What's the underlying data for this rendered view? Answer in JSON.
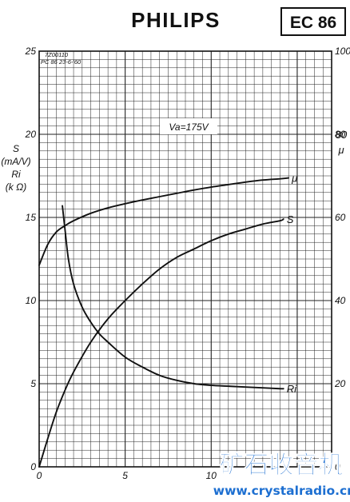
{
  "header": {
    "brand": "PHILIPS",
    "tube_type": "EC 86"
  },
  "sheet": {
    "code": "7Z00110",
    "ref": "PC 86   23-6-'60"
  },
  "chart_data": {
    "type": "line",
    "title": "",
    "annotation": "Va=175V",
    "x": {
      "label": "",
      "range": [
        0,
        17
      ],
      "ticks": [
        0,
        5,
        10
      ]
    },
    "y_left": {
      "label_lines": [
        "S",
        "(mA/V)",
        "Ri",
        "(k Ω)"
      ],
      "range": [
        0,
        25
      ],
      "ticks": [
        0,
        5,
        10,
        15,
        20,
        25
      ]
    },
    "y_right": {
      "label_lines": [
        "80",
        "μ"
      ],
      "range": [
        0,
        100
      ],
      "ticks": [
        0,
        20,
        40,
        60,
        80,
        100
      ]
    },
    "grid": true,
    "series": [
      {
        "name": "μ",
        "axis": "right",
        "points": [
          [
            0,
            48.5
          ],
          [
            0.5,
            53.5
          ],
          [
            1,
            56.5
          ],
          [
            1.5,
            58
          ],
          [
            2,
            59.2
          ],
          [
            3,
            61
          ],
          [
            4,
            62.3
          ],
          [
            5,
            63.3
          ],
          [
            6,
            64.2
          ],
          [
            7,
            65
          ],
          [
            8,
            65.8
          ],
          [
            9,
            66.6
          ],
          [
            10,
            67.3
          ],
          [
            11,
            67.9
          ],
          [
            12,
            68.5
          ],
          [
            13,
            69
          ],
          [
            14,
            69.3
          ],
          [
            14.5,
            69.5
          ]
        ]
      },
      {
        "name": "S",
        "axis": "left",
        "points": [
          [
            0,
            0
          ],
          [
            0.5,
            1.7
          ],
          [
            1,
            3.3
          ],
          [
            1.5,
            4.6
          ],
          [
            2,
            5.7
          ],
          [
            3,
            7.5
          ],
          [
            4,
            8.9
          ],
          [
            5,
            10
          ],
          [
            6,
            11
          ],
          [
            7,
            11.9
          ],
          [
            8,
            12.6
          ],
          [
            9,
            13.1
          ],
          [
            10,
            13.6
          ],
          [
            11,
            14
          ],
          [
            12,
            14.3
          ],
          [
            13,
            14.6
          ],
          [
            14,
            14.8
          ],
          [
            14.2,
            14.9
          ]
        ]
      },
      {
        "name": "Ri",
        "axis": "left",
        "points": [
          [
            1.35,
            15.7
          ],
          [
            1.5,
            14.3
          ],
          [
            1.7,
            12.5
          ],
          [
            2,
            11
          ],
          [
            2.5,
            9.6
          ],
          [
            3,
            8.7
          ],
          [
            3.5,
            8
          ],
          [
            4,
            7.5
          ],
          [
            5,
            6.6
          ],
          [
            6,
            6
          ],
          [
            7,
            5.5
          ],
          [
            8,
            5.2
          ],
          [
            9,
            5
          ],
          [
            10,
            4.9
          ],
          [
            11,
            4.85
          ],
          [
            12,
            4.8
          ],
          [
            13,
            4.75
          ],
          [
            14,
            4.7
          ],
          [
            14.2,
            4.7
          ]
        ]
      }
    ]
  },
  "watermark": {
    "chinese": "矿石收音机",
    "url": "www.crystalradio.cn"
  }
}
